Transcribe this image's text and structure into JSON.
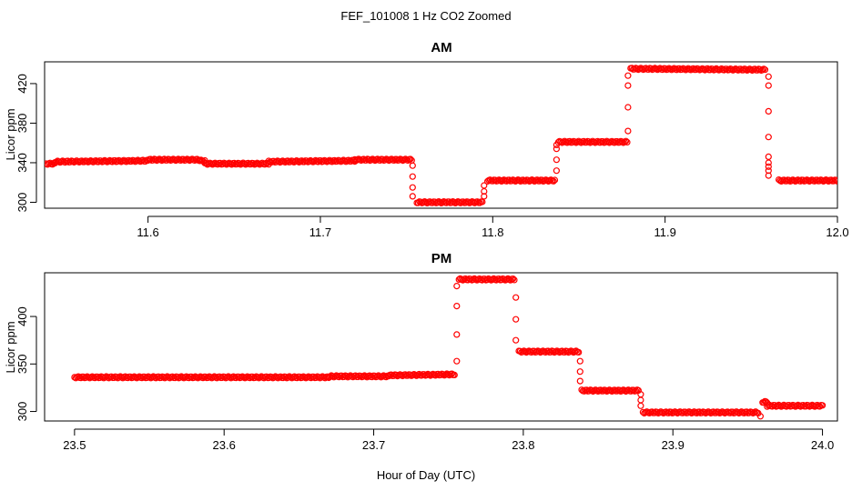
{
  "figure_title": "FEF_101008  1 Hz CO2 Zoomed",
  "shared_xlabel": "Hour of Day (UTC)",
  "colors": {
    "points": "#ff0000",
    "axes": "#000000",
    "background": "#ffffff"
  },
  "chart_data": [
    {
      "type": "scatter",
      "title": "AM",
      "xlabel": "",
      "ylabel": "Licor ppm",
      "xlim": [
        11.54,
        12.0
      ],
      "ylim": [
        294,
        442
      ],
      "xticks": [
        11.6,
        11.7,
        11.8,
        11.9,
        12.0
      ],
      "xtick_labels": [
        "11.6",
        "11.7",
        "11.8",
        "11.9",
        "12.0"
      ],
      "yticks": [
        300,
        340,
        380,
        420
      ],
      "ytick_labels": [
        "300",
        "340",
        "380",
        "420"
      ],
      "grid": false,
      "marker": "open-circle",
      "segments": [
        {
          "x": [
            11.541,
            11.546
          ],
          "y": [
            339,
            339
          ]
        },
        {
          "x": [
            11.546,
            11.6
          ],
          "y": [
            341,
            342
          ]
        },
        {
          "x": [
            11.6,
            11.63
          ],
          "y": [
            343,
            343
          ]
        },
        {
          "x": [
            11.63,
            11.633
          ],
          "y": [
            342,
            342
          ]
        },
        {
          "x": [
            11.633,
            11.67
          ],
          "y": [
            339,
            339
          ]
        },
        {
          "x": [
            11.67,
            11.72
          ],
          "y": [
            341,
            342
          ]
        },
        {
          "x": [
            11.72,
            11.753
          ],
          "y": [
            343,
            343
          ]
        },
        {
          "x": [
            11.756,
            11.794
          ],
          "y": [
            300,
            300
          ]
        },
        {
          "x": [
            11.797,
            11.836
          ],
          "y": [
            322,
            322
          ]
        },
        {
          "x": [
            11.838,
            11.878
          ],
          "y": [
            361,
            361
          ]
        },
        {
          "x": [
            11.88,
            11.958
          ],
          "y": [
            435,
            434
          ]
        },
        {
          "x": [
            11.966,
            12.0
          ],
          "y": [
            322,
            322
          ]
        }
      ],
      "transitions": [
        {
          "x": 11.7535,
          "y": [
            337,
            326,
            315,
            306
          ]
        },
        {
          "x": 11.795,
          "y": [
            306,
            311,
            317
          ]
        },
        {
          "x": 11.837,
          "y": [
            332,
            343,
            354,
            358
          ]
        },
        {
          "x": 11.8785,
          "y": [
            372,
            396,
            418,
            428
          ]
        },
        {
          "x": 11.96,
          "y": [
            427,
            418,
            392,
            366,
            346,
            340,
            336,
            332,
            327
          ]
        }
      ]
    },
    {
      "type": "scatter",
      "title": "PM",
      "xlabel": "Hour of Day (UTC)",
      "ylabel": "Licor ppm",
      "xlim": [
        23.48,
        24.01
      ],
      "ylim": [
        290,
        446
      ],
      "xticks": [
        23.5,
        23.6,
        23.7,
        23.8,
        23.9,
        24.0
      ],
      "xtick_labels": [
        "23.5",
        "23.6",
        "23.7",
        "23.8",
        "23.9",
        "24.0"
      ],
      "yticks": [
        300,
        350,
        400
      ],
      "ytick_labels": [
        "300",
        "350",
        "400"
      ],
      "grid": false,
      "marker": "open-circle",
      "segments": [
        {
          "x": [
            23.5,
            23.67
          ],
          "y": [
            336,
            336
          ]
        },
        {
          "x": [
            23.67,
            23.71
          ],
          "y": [
            337,
            337
          ]
        },
        {
          "x": [
            23.71,
            23.754
          ],
          "y": [
            338,
            339
          ]
        },
        {
          "x": [
            23.757,
            23.794
          ],
          "y": [
            439,
            439
          ]
        },
        {
          "x": [
            23.797,
            23.837
          ],
          "y": [
            363,
            363
          ]
        },
        {
          "x": [
            23.839,
            23.877
          ],
          "y": [
            322,
            322
          ]
        },
        {
          "x": [
            23.88,
            23.957
          ],
          "y": [
            299,
            299
          ]
        },
        {
          "x": [
            23.96,
            23.963
          ],
          "y": [
            310,
            310
          ]
        },
        {
          "x": [
            23.963,
            24.0
          ],
          "y": [
            306,
            306
          ]
        }
      ],
      "transitions": [
        {
          "x": 23.7555,
          "y": [
            353,
            381,
            411,
            432
          ]
        },
        {
          "x": 23.795,
          "y": [
            420,
            397,
            375
          ]
        },
        {
          "x": 23.838,
          "y": [
            353,
            342,
            332
          ]
        },
        {
          "x": 23.8785,
          "y": [
            318,
            312,
            306
          ]
        },
        {
          "x": 23.9585,
          "y": [
            295
          ]
        }
      ]
    }
  ]
}
